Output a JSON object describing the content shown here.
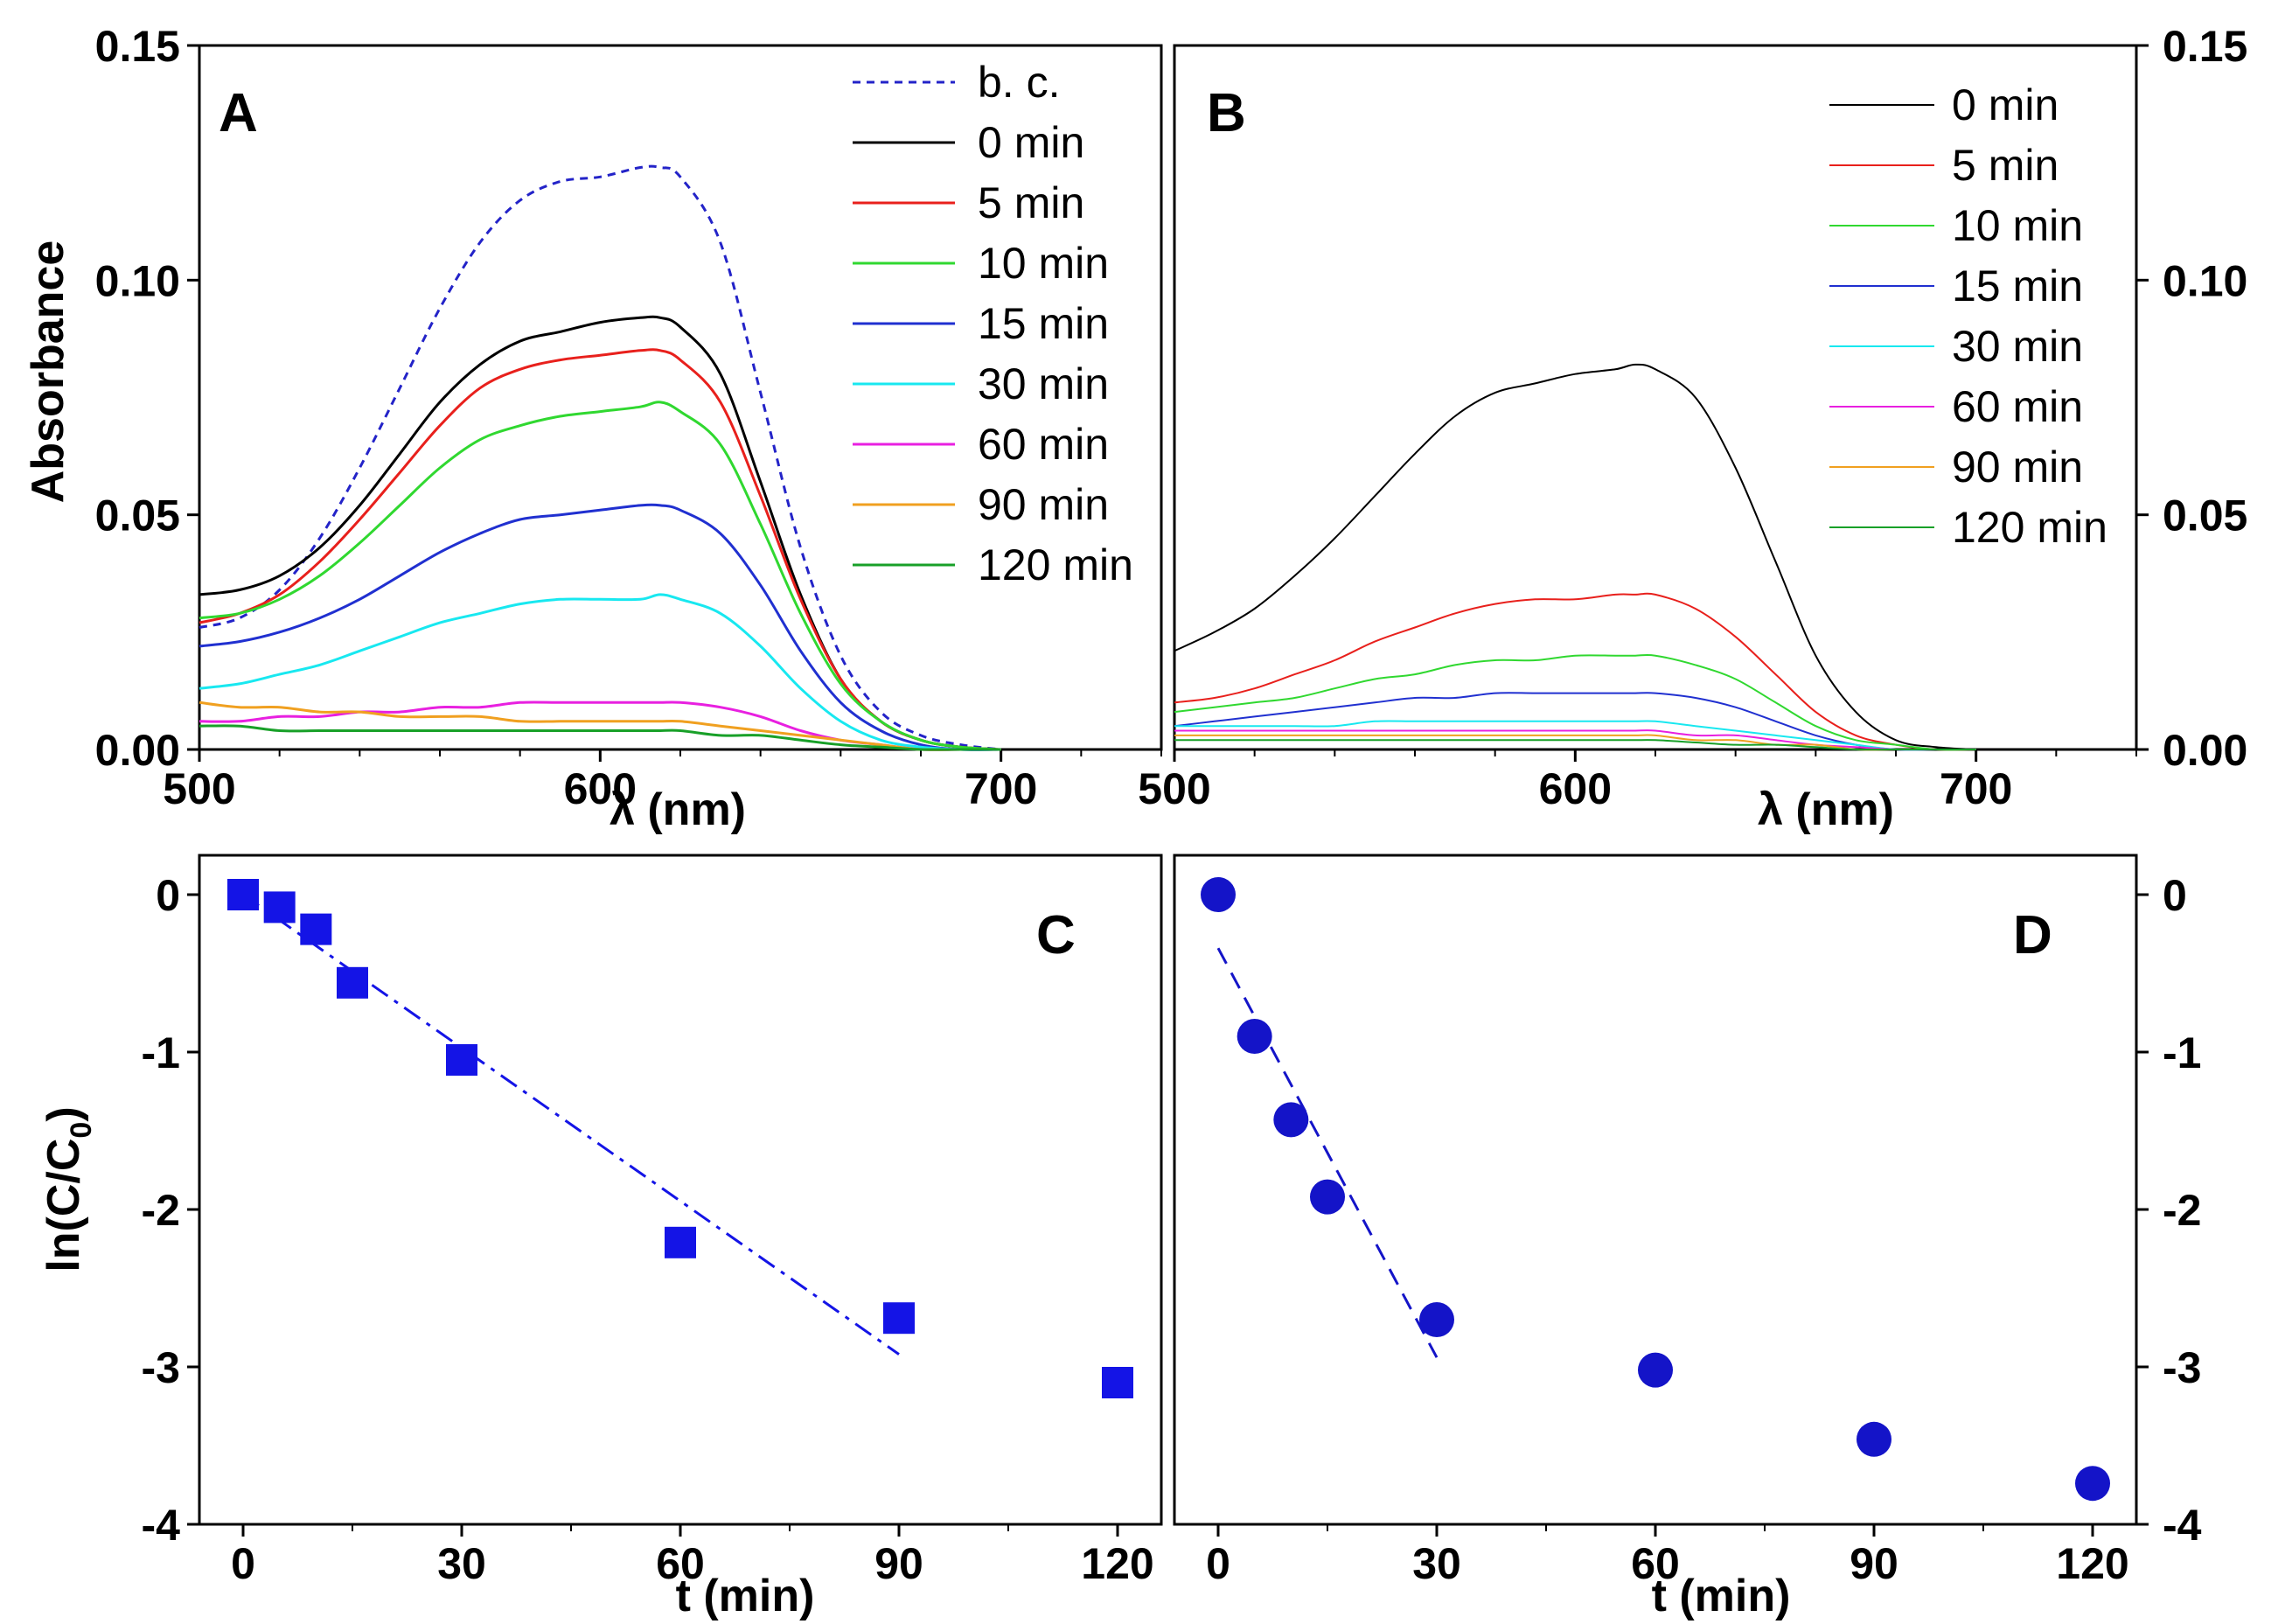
{
  "chart_data": [
    {
      "panel": "A",
      "type": "line",
      "xlabel": "λ (nm)",
      "ylabel": "Absorbance",
      "xlim": [
        500,
        740
      ],
      "ylim": [
        0,
        0.15
      ],
      "xticks": [
        "500",
        "600",
        "700"
      ],
      "yticks": [
        "0.00",
        "0.05",
        "0.10",
        "0.15"
      ],
      "legend_position": "top-right",
      "x": [
        500,
        510,
        520,
        530,
        540,
        550,
        560,
        570,
        580,
        590,
        600,
        610,
        615,
        620,
        630,
        640,
        650,
        660,
        670,
        680,
        690,
        700
      ],
      "series": [
        {
          "name": "b. c.",
          "color": "#2323c8",
          "dash": true,
          "values": [
            0.026,
            0.028,
            0.034,
            0.045,
            0.06,
            0.077,
            0.094,
            0.108,
            0.117,
            0.121,
            0.122,
            0.124,
            0.124,
            0.122,
            0.108,
            0.076,
            0.043,
            0.02,
            0.008,
            0.003,
            0.001,
            0.0
          ]
        },
        {
          "name": "0 min",
          "color": "#000000",
          "dash": false,
          "values": [
            0.033,
            0.034,
            0.037,
            0.043,
            0.052,
            0.063,
            0.074,
            0.082,
            0.087,
            0.089,
            0.091,
            0.092,
            0.092,
            0.09,
            0.08,
            0.057,
            0.033,
            0.015,
            0.006,
            0.002,
            0.0005,
            0.0
          ]
        },
        {
          "name": "5 min",
          "color": "#e8201c",
          "dash": false,
          "values": [
            0.027,
            0.029,
            0.033,
            0.04,
            0.049,
            0.059,
            0.069,
            0.077,
            0.081,
            0.083,
            0.084,
            0.085,
            0.085,
            0.083,
            0.074,
            0.054,
            0.032,
            0.015,
            0.006,
            0.002,
            0.0005,
            0.0
          ]
        },
        {
          "name": "10 min",
          "color": "#30d830",
          "dash": false,
          "values": [
            0.028,
            0.029,
            0.032,
            0.037,
            0.044,
            0.052,
            0.06,
            0.066,
            0.069,
            0.071,
            0.072,
            0.073,
            0.074,
            0.072,
            0.065,
            0.048,
            0.029,
            0.014,
            0.006,
            0.002,
            0.0005,
            0.0
          ]
        },
        {
          "name": "15 min",
          "color": "#2030d0",
          "dash": false,
          "values": [
            0.022,
            0.023,
            0.025,
            0.028,
            0.032,
            0.037,
            0.042,
            0.046,
            0.049,
            0.05,
            0.051,
            0.052,
            0.052,
            0.051,
            0.046,
            0.035,
            0.021,
            0.01,
            0.004,
            0.001,
            0.0,
            0.0
          ]
        },
        {
          "name": "30 min",
          "color": "#18e8f0",
          "dash": false,
          "values": [
            0.013,
            0.014,
            0.016,
            0.018,
            0.021,
            0.024,
            0.027,
            0.029,
            0.031,
            0.032,
            0.032,
            0.032,
            0.033,
            0.032,
            0.029,
            0.022,
            0.013,
            0.006,
            0.002,
            0.0005,
            0.0,
            0.0
          ]
        },
        {
          "name": "60 min",
          "color": "#e820e0",
          "dash": false,
          "values": [
            0.006,
            0.006,
            0.007,
            0.007,
            0.008,
            0.008,
            0.009,
            0.009,
            0.01,
            0.01,
            0.01,
            0.01,
            0.01,
            0.01,
            0.009,
            0.007,
            0.004,
            0.002,
            0.001,
            0.0,
            0.0,
            0.0
          ]
        },
        {
          "name": "90 min",
          "color": "#f0a020",
          "dash": false,
          "values": [
            0.01,
            0.009,
            0.009,
            0.008,
            0.008,
            0.007,
            0.007,
            0.007,
            0.006,
            0.006,
            0.006,
            0.006,
            0.006,
            0.006,
            0.005,
            0.004,
            0.003,
            0.002,
            0.001,
            0.0,
            0.0,
            0.0
          ]
        },
        {
          "name": "120 min",
          "color": "#18a028",
          "dash": false,
          "values": [
            0.005,
            0.005,
            0.004,
            0.004,
            0.004,
            0.004,
            0.004,
            0.004,
            0.004,
            0.004,
            0.004,
            0.004,
            0.004,
            0.004,
            0.003,
            0.003,
            0.002,
            0.001,
            0.0005,
            0.0,
            0.0,
            0.0
          ]
        }
      ]
    },
    {
      "panel": "B",
      "type": "line",
      "xlabel": "λ (nm)",
      "ylabel": "",
      "xlim": [
        500,
        740
      ],
      "ylim": [
        0,
        0.15
      ],
      "xticks": [
        "500",
        "600",
        "700"
      ],
      "yticks": [
        "0.00",
        "0.05",
        "0.10",
        "0.15"
      ],
      "legend_position": "top-right",
      "x": [
        500,
        510,
        520,
        530,
        540,
        550,
        560,
        570,
        580,
        590,
        600,
        610,
        615,
        620,
        630,
        640,
        650,
        660,
        670,
        680,
        690,
        700
      ],
      "series": [
        {
          "name": "0 min",
          "color": "#000000",
          "values": [
            0.021,
            0.025,
            0.03,
            0.037,
            0.045,
            0.054,
            0.063,
            0.071,
            0.076,
            0.078,
            0.08,
            0.081,
            0.082,
            0.081,
            0.075,
            0.06,
            0.04,
            0.02,
            0.008,
            0.002,
            0.0005,
            0.0
          ]
        },
        {
          "name": "5 min",
          "color": "#e8201c",
          "values": [
            0.01,
            0.011,
            0.013,
            0.016,
            0.019,
            0.023,
            0.026,
            0.029,
            0.031,
            0.032,
            0.032,
            0.033,
            0.033,
            0.033,
            0.03,
            0.024,
            0.016,
            0.008,
            0.003,
            0.001,
            0.0,
            0.0
          ]
        },
        {
          "name": "10 min",
          "color": "#30d830",
          "values": [
            0.008,
            0.009,
            0.01,
            0.011,
            0.013,
            0.015,
            0.016,
            0.018,
            0.019,
            0.019,
            0.02,
            0.02,
            0.02,
            0.02,
            0.018,
            0.015,
            0.01,
            0.005,
            0.002,
            0.001,
            0.0,
            0.0
          ]
        },
        {
          "name": "15 min",
          "color": "#2030d0",
          "values": [
            0.005,
            0.006,
            0.007,
            0.008,
            0.009,
            0.01,
            0.011,
            0.011,
            0.012,
            0.012,
            0.012,
            0.012,
            0.012,
            0.012,
            0.011,
            0.009,
            0.006,
            0.003,
            0.001,
            0.0,
            0.0,
            0.0
          ]
        },
        {
          "name": "30 min",
          "color": "#18e8f0",
          "values": [
            0.005,
            0.005,
            0.005,
            0.005,
            0.005,
            0.006,
            0.006,
            0.006,
            0.006,
            0.006,
            0.006,
            0.006,
            0.006,
            0.006,
            0.005,
            0.004,
            0.003,
            0.002,
            0.001,
            0.0,
            0.0,
            0.0
          ]
        },
        {
          "name": "60 min",
          "color": "#e820e0",
          "values": [
            0.004,
            0.004,
            0.004,
            0.004,
            0.004,
            0.004,
            0.004,
            0.004,
            0.004,
            0.004,
            0.004,
            0.004,
            0.004,
            0.004,
            0.003,
            0.003,
            0.002,
            0.001,
            0.0005,
            0.0,
            0.0,
            0.0
          ]
        },
        {
          "name": "90 min",
          "color": "#f0a020",
          "values": [
            0.003,
            0.003,
            0.003,
            0.003,
            0.003,
            0.003,
            0.003,
            0.003,
            0.003,
            0.003,
            0.003,
            0.003,
            0.003,
            0.003,
            0.002,
            0.002,
            0.001,
            0.001,
            0.0,
            0.0,
            0.0,
            0.0
          ]
        },
        {
          "name": "120 min",
          "color": "#18a028",
          "values": [
            0.002,
            0.002,
            0.002,
            0.002,
            0.002,
            0.002,
            0.002,
            0.002,
            0.002,
            0.002,
            0.002,
            0.002,
            0.002,
            0.002,
            0.0015,
            0.001,
            0.001,
            0.0005,
            0.0,
            0.0,
            0.0,
            0.0
          ]
        }
      ]
    },
    {
      "panel": "C",
      "type": "scatter",
      "xlabel": "t (min)",
      "ylabel": "ln(C/C0)",
      "ylabel_parts": {
        "main": "ln(C/C",
        "sub": "0",
        "close": ")"
      },
      "xlim": [
        -6,
        126
      ],
      "ylim": [
        -4,
        0.25
      ],
      "xticks": [
        "0",
        "30",
        "60",
        "90",
        "120"
      ],
      "yticks": [
        "0",
        "-1",
        "-2",
        "-3",
        "-4"
      ],
      "marker": "square",
      "color": "#1414e6",
      "x": [
        0,
        5,
        10,
        15,
        30,
        60,
        90,
        120
      ],
      "y": [
        0,
        -0.08,
        -0.22,
        -0.56,
        -1.05,
        -2.21,
        -2.69,
        -3.1
      ],
      "fit": {
        "style": "dash-dot",
        "x": [
          0,
          90
        ],
        "y": [
          0.0,
          -2.92
        ]
      }
    },
    {
      "panel": "D",
      "type": "scatter",
      "xlabel": "t (min)",
      "ylabel": "",
      "xlim": [
        -6,
        126
      ],
      "ylim": [
        -4,
        0.25
      ],
      "xticks": [
        "0",
        "30",
        "60",
        "90",
        "120"
      ],
      "yticks": [
        "0",
        "-1",
        "-2",
        "-3",
        "-4"
      ],
      "marker": "circle",
      "color": "#1414c8",
      "x": [
        0,
        5,
        10,
        15,
        30,
        60,
        90,
        120
      ],
      "y": [
        0,
        -0.9,
        -1.43,
        -1.92,
        -2.7,
        -3.02,
        -3.46,
        -3.74
      ],
      "fit": {
        "style": "dash",
        "x": [
          0,
          30
        ],
        "y": [
          -0.34,
          -2.94
        ]
      }
    }
  ]
}
